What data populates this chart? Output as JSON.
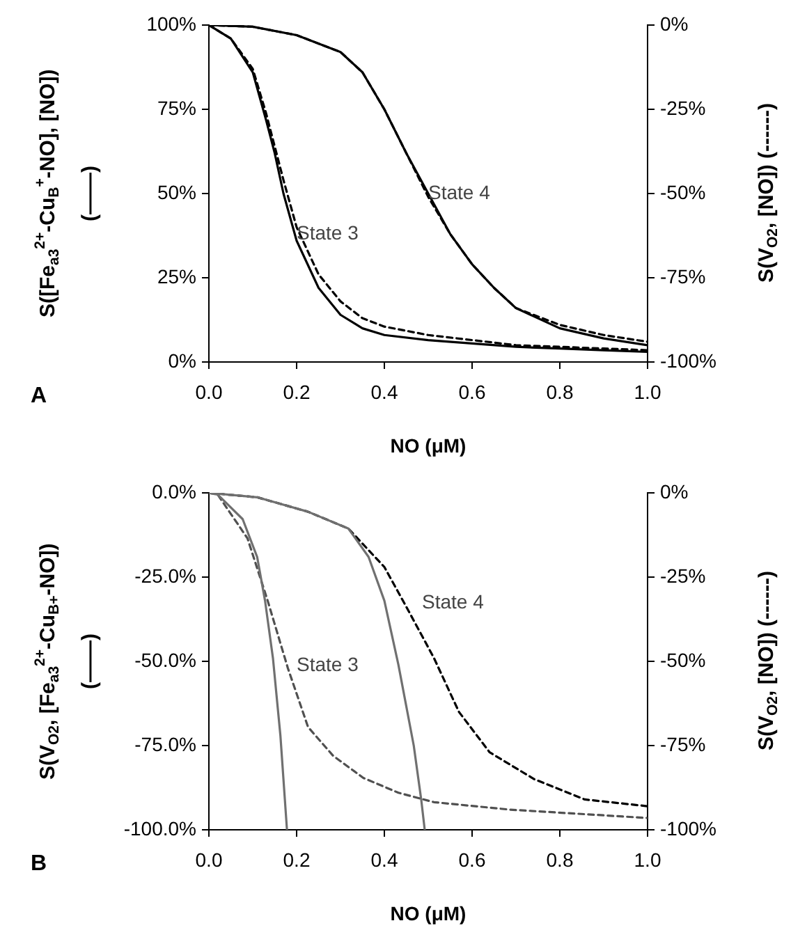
{
  "chart_data": [
    {
      "type": "line",
      "xlabel": "NO (μM)",
      "ylabel": "S([Fe$_{a3}$$^{2+}$-Cu$_{B}$$^{+}$-NO], [NO])\n(——)",
      "y2label": "S(V$_{O2}$, [NO]) (------)",
      "xlim": [
        0,
        1
      ],
      "xticks": [
        {
          "value": 0,
          "label": "0.0"
        },
        {
          "value": 0.2,
          "label": "0.2"
        },
        {
          "value": 0.4,
          "label": "0.4"
        },
        {
          "value": 0.6,
          "label": "0.6"
        },
        {
          "value": 0.8,
          "label": "0.8"
        },
        {
          "value": 1,
          "label": "1.0"
        }
      ],
      "ylim": [
        0,
        100
      ],
      "yticks": [
        {
          "value": 0,
          "label": "0%"
        },
        {
          "value": 25,
          "label": "25%"
        },
        {
          "value": 50,
          "label": "50%"
        },
        {
          "value": 75,
          "label": "75%"
        },
        {
          "value": 100,
          "label": "100%"
        }
      ],
      "y2lim": [
        -100,
        0
      ],
      "y2ticks": [
        {
          "value": -100,
          "label": "-100%"
        },
        {
          "value": -75,
          "label": "-75%"
        },
        {
          "value": -50,
          "label": "-50%"
        },
        {
          "value": -25,
          "label": "-25%"
        },
        {
          "value": 0,
          "label": "0%"
        }
      ],
      "grid": false,
      "marker": "none",
      "series": [
        {
          "color": "#000000",
          "line_style": "solid",
          "x": [
            0,
            0.05,
            0.1,
            0.13,
            0.15,
            0.17,
            0.2,
            0.25,
            0.3,
            0.35,
            0.4,
            0.5,
            0.6,
            0.7,
            0.8,
            0.9,
            1.0
          ],
          "values": [
            100,
            96,
            86,
            72,
            62,
            50,
            36,
            22,
            14,
            10,
            8,
            6.5,
            5.5,
            4.5,
            4,
            3.5,
            3
          ]
        },
        {
          "color": "#000000",
          "line_style": "dashed",
          "axis": "y2",
          "x": [
            0,
            0.05,
            0.1,
            0.13,
            0.15,
            0.17,
            0.2,
            0.25,
            0.3,
            0.35,
            0.4,
            0.5,
            0.6,
            0.7,
            0.8,
            0.9,
            1.0
          ],
          "values": [
            0,
            -4,
            -13,
            -26,
            -36,
            -46,
            -60,
            -74,
            -82,
            -87,
            -89.5,
            -92,
            -93.5,
            -95,
            -95.5,
            -96,
            -96.5
          ]
        },
        {
          "color": "#000000",
          "line_style": "solid",
          "x": [
            0,
            0.1,
            0.2,
            0.3,
            0.35,
            0.4,
            0.45,
            0.5,
            0.55,
            0.6,
            0.65,
            0.7,
            0.8,
            0.9,
            1.0
          ],
          "values": [
            100,
            99.5,
            97,
            92,
            86,
            75,
            62,
            50,
            38,
            29,
            22,
            16,
            10,
            7,
            5
          ]
        },
        {
          "color": "#000000",
          "line_style": "dashed",
          "axis": "y2",
          "x": [
            0,
            0.1,
            0.2,
            0.3,
            0.35,
            0.4,
            0.45,
            0.5,
            0.55,
            0.6,
            0.65,
            0.7,
            0.8,
            0.9,
            1.0
          ],
          "values": [
            0,
            -0.5,
            -3,
            -8,
            -14,
            -25,
            -38,
            -51,
            -62,
            -71,
            -78,
            -84,
            -89,
            -92,
            -94
          ]
        }
      ],
      "annotations": [
        {
          "text": "State 3",
          "x": 0.2,
          "y": 38
        },
        {
          "text": "State 4",
          "x": 0.5,
          "y": 50
        },
        "A"
      ]
    },
    {
      "type": "line",
      "xlabel": "NO (μM)",
      "ylabel": "S(V$_{O2}$, [Fe$_{a3}$$^{2+}$-Cu$_{B+}$-NO])\n(——)",
      "y2label": "S(V$_{O2}$, [NO]) (------)",
      "xlim": [
        0,
        1
      ],
      "xticks": [
        {
          "value": 0,
          "label": "0.0"
        },
        {
          "value": 0.2,
          "label": "0.2"
        },
        {
          "value": 0.4,
          "label": "0.4"
        },
        {
          "value": 0.6,
          "label": "0.6"
        },
        {
          "value": 0.8,
          "label": "0.8"
        },
        {
          "value": 1,
          "label": "1.0"
        }
      ],
      "ylim": [
        -100,
        0
      ],
      "yticks": [
        {
          "value": -100,
          "label": "-100.0%"
        },
        {
          "value": -75,
          "label": "-75.0%"
        },
        {
          "value": -50,
          "label": "-50.0%"
        },
        {
          "value": -25,
          "label": "-25.0%"
        },
        {
          "value": 0,
          "label": "0.0%"
        }
      ],
      "y2lim": [
        -100,
        0
      ],
      "y2ticks": [
        {
          "value": -100,
          "label": "-100%"
        },
        {
          "value": -75,
          "label": "-75%"
        },
        {
          "value": -50,
          "label": "-50%"
        },
        {
          "value": -25,
          "label": "-25%"
        },
        {
          "value": 0,
          "label": "0%"
        }
      ],
      "grid": false,
      "marker": "none",
      "series": [
        {
          "color": "#707070",
          "line_style": "solid",
          "x": [
            0,
            0.02,
            0.077,
            0.11,
            0.128,
            0.146,
            0.163,
            0.178
          ],
          "values": [
            0,
            -0.5,
            -7.8,
            -19,
            -32,
            -49,
            -72,
            -100
          ]
        },
        {
          "color": "#505050",
          "line_style": "dashed",
          "axis": "y2",
          "x": [
            0,
            0.02,
            0.088,
            0.134,
            0.18,
            0.226,
            0.283,
            0.352,
            0.432,
            0.513,
            0.685,
            1.0
          ],
          "values": [
            0,
            -0.5,
            -13.5,
            -32,
            -52,
            -69.5,
            -78,
            -84.6,
            -89,
            -91.8,
            -94,
            -96.5
          ]
        },
        {
          "color": "#707070",
          "line_style": "solid",
          "x": [
            0,
            0.11,
            0.226,
            0.318,
            0.364,
            0.4,
            0.432,
            0.467,
            0.484,
            0.492
          ],
          "values": [
            0,
            -1.3,
            -5.6,
            -10.6,
            -19,
            -32,
            -51,
            -75,
            -91,
            -100
          ]
        },
        {
          "color": "#000000",
          "line_style": "dashed",
          "axis": "y2",
          "x": [
            0,
            0.11,
            0.226,
            0.318,
            0.4,
            0.455,
            0.513,
            0.57,
            0.64,
            0.742,
            0.857,
            1.0
          ],
          "values": [
            0,
            -1.3,
            -5.6,
            -10.6,
            -22,
            -35,
            -49,
            -65,
            -77,
            -85,
            -91,
            -93
          ]
        }
      ],
      "annotations": [
        "State 3",
        "State 4",
        "B"
      ]
    }
  ]
}
